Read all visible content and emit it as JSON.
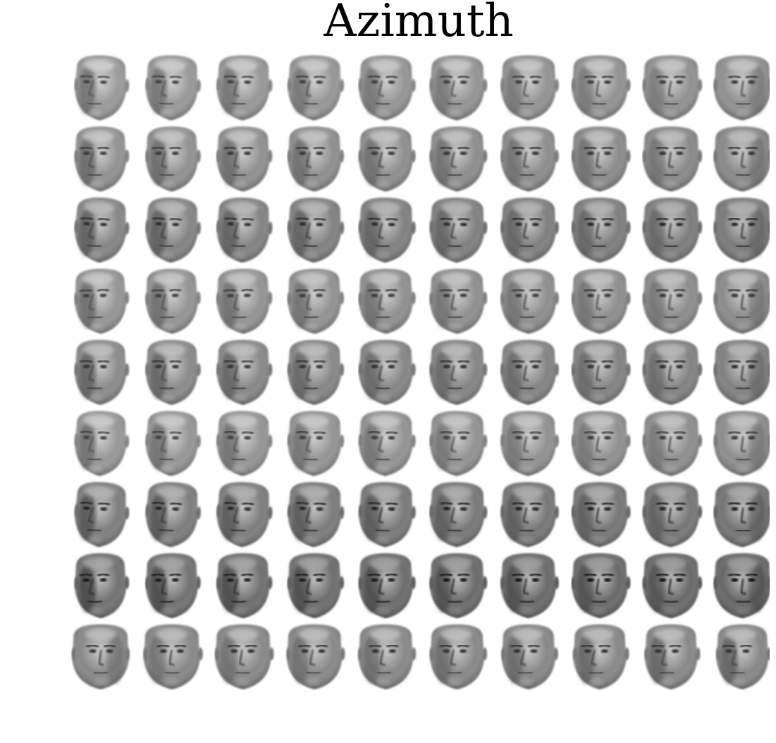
{
  "figure": {
    "title": "Azimuth"
  },
  "grid": {
    "rows": 9,
    "columns": 10,
    "rows_spec": [
      {
        "tone": 0.58,
        "dir": -1,
        "tilt": 0.3
      },
      {
        "tone": 0.55,
        "dir": -1,
        "tilt": 0.0
      },
      {
        "tone": 0.5,
        "dir": -1,
        "tilt": 0.4
      },
      {
        "tone": 0.56,
        "dir": -1,
        "tilt": -0.2
      },
      {
        "tone": 0.52,
        "dir": -1,
        "tilt": 0.1
      },
      {
        "tone": 0.57,
        "dir": -1,
        "tilt": 0.3
      },
      {
        "tone": 0.47,
        "dir": -1,
        "tilt": 0.5
      },
      {
        "tone": 0.42,
        "dir": -1,
        "tilt": -0.1
      },
      {
        "tone": 0.53,
        "dir": 1,
        "tilt": 0.0
      }
    ]
  },
  "colors": {
    "background": "#ffffff",
    "title": "#000000"
  }
}
